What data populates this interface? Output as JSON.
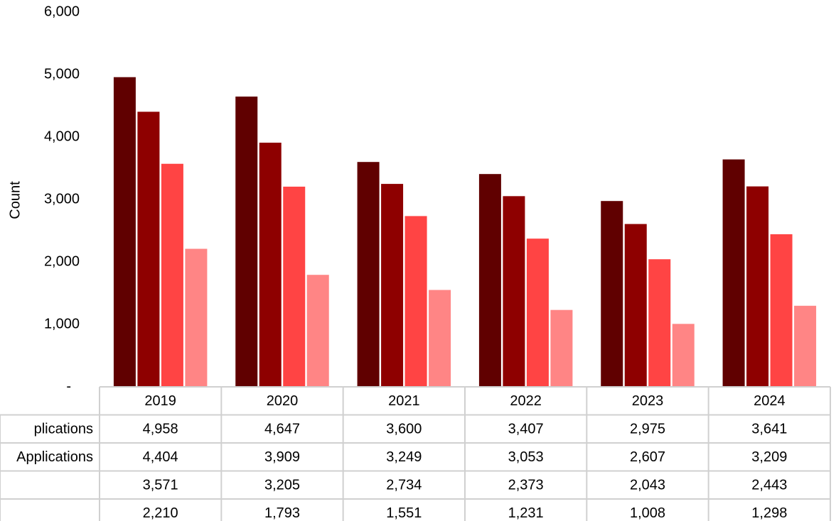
{
  "chart_data": {
    "type": "bar",
    "y_label": "Count",
    "categories": [
      "2019",
      "2020",
      "2021",
      "2022",
      "2023",
      "2024"
    ],
    "series": [
      {
        "name": "plications",
        "color": "#600000",
        "values": [
          4958,
          4647,
          3600,
          3407,
          2975,
          3641
        ],
        "value_labels": [
          "4,958",
          "4,647",
          "3,600",
          "3,407",
          "2,975",
          "3,641"
        ]
      },
      {
        "name": "Applications",
        "color": "#8e0000",
        "values": [
          4404,
          3909,
          3249,
          3053,
          2607,
          3209
        ],
        "value_labels": [
          "4,404",
          "3,909",
          "3,249",
          "3,053",
          "2,607",
          "3,209"
        ]
      },
      {
        "name": null,
        "color": "#ff4444",
        "values": [
          3571,
          3205,
          2734,
          2373,
          2043,
          2443
        ],
        "value_labels": [
          "3,571",
          "3,205",
          "2,734",
          "2,373",
          "2,043",
          "2,443"
        ]
      },
      {
        "name": null,
        "color": "#ff8585",
        "values": [
          2210,
          1793,
          1551,
          1231,
          1008,
          1298
        ],
        "value_labels": [
          "2,210",
          "1,793",
          "1,551",
          "1,231",
          "1,008",
          "1,298"
        ]
      }
    ],
    "ylim": [
      0,
      6000
    ],
    "yticks": [
      {
        "value": 0,
        "label": "-"
      },
      {
        "value": 1000,
        "label": "1,000"
      },
      {
        "value": 2000,
        "label": "2,000"
      },
      {
        "value": 3000,
        "label": "3,000"
      },
      {
        "value": 4000,
        "label": "4,000"
      },
      {
        "value": 5000,
        "label": "5,000"
      },
      {
        "value": 6000,
        "label": "6,000"
      }
    ],
    "grid": false
  }
}
